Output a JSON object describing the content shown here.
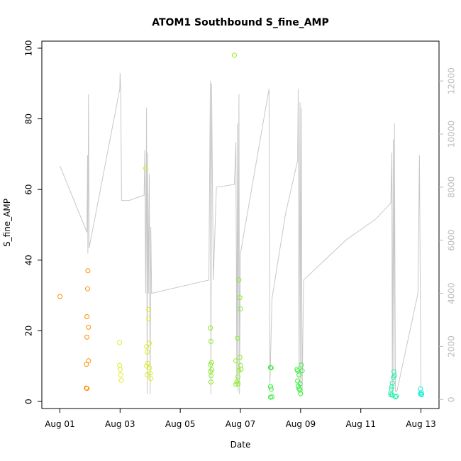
{
  "chart_data": {
    "type": "scatter",
    "title": "ATOM1 Southbound S_fine_AMP",
    "xlabel": "Date",
    "ylabel": "S_fine_AMP",
    "x_unit": "days since Aug 01",
    "xlim": [
      -0.6,
      12.6
    ],
    "ylim": [
      -2,
      102
    ],
    "x_ticks": [
      {
        "value": 0,
        "label": "Aug 01"
      },
      {
        "value": 2,
        "label": "Aug 03"
      },
      {
        "value": 4,
        "label": "Aug 05"
      },
      {
        "value": 6,
        "label": "Aug 07"
      },
      {
        "value": 8,
        "label": "Aug 09"
      },
      {
        "value": 10,
        "label": "Aug 11"
      },
      {
        "value": 12,
        "label": "Aug 13"
      }
    ],
    "y_ticks": [
      0,
      20,
      40,
      60,
      80,
      100
    ],
    "y2_ticks": [
      0,
      2000,
      4000,
      6000,
      8000,
      10000,
      12000
    ],
    "y2lim": [
      -340,
      13500
    ],
    "grid": false,
    "secondary_series": {
      "color": "#c8c8c8",
      "points": [
        [
          0,
          8800
        ],
        [
          0.9,
          6300
        ],
        [
          0.92,
          9200
        ],
        [
          0.93,
          5500
        ],
        [
          0.95,
          11500
        ],
        [
          0.97,
          5700
        ],
        [
          1.99,
          11700
        ],
        [
          2.0,
          12300
        ],
        [
          2.02,
          11700
        ],
        [
          2.05,
          7500
        ],
        [
          2.3,
          7500
        ],
        [
          2.8,
          7700
        ],
        [
          2.82,
          9400
        ],
        [
          2.85,
          4000
        ],
        [
          2.88,
          11000
        ],
        [
          2.9,
          200
        ],
        [
          2.92,
          9300
        ],
        [
          2.94,
          4000
        ],
        [
          2.97,
          8500
        ],
        [
          3.0,
          200
        ],
        [
          3.02,
          6500
        ],
        [
          3.05,
          4000
        ],
        [
          4.95,
          4500
        ],
        [
          5.0,
          12000
        ],
        [
          5.02,
          200
        ],
        [
          5.04,
          11900
        ],
        [
          5.1,
          4500
        ],
        [
          5.2,
          8000
        ],
        [
          5.8,
          8100
        ],
        [
          5.85,
          9700
        ],
        [
          5.88,
          600
        ],
        [
          5.9,
          10400
        ],
        [
          5.92,
          300
        ],
        [
          5.95,
          11500
        ],
        [
          5.97,
          200
        ],
        [
          6.0,
          5500
        ],
        [
          6.95,
          11700
        ],
        [
          6.98,
          600
        ],
        [
          7.05,
          3800
        ],
        [
          7.5,
          7000
        ],
        [
          7.9,
          9000
        ],
        [
          7.92,
          11700
        ],
        [
          7.95,
          400
        ],
        [
          7.98,
          11200
        ],
        [
          8.0,
          600
        ],
        [
          8.02,
          11000
        ],
        [
          8.05,
          300
        ],
        [
          8.1,
          4500
        ],
        [
          9.5,
          6000
        ],
        [
          10.5,
          6800
        ],
        [
          11.0,
          7400
        ],
        [
          11.03,
          9300
        ],
        [
          11.05,
          300
        ],
        [
          11.08,
          9800
        ],
        [
          11.1,
          500
        ],
        [
          11.12,
          10400
        ],
        [
          11.15,
          300
        ],
        [
          11.2,
          300
        ],
        [
          11.9,
          4000
        ],
        [
          11.95,
          9200
        ],
        [
          12.0,
          400
        ]
      ]
    },
    "series": [
      {
        "color": "#FF8C00",
        "points": [
          [
            0,
            29.7
          ],
          [
            0.88,
            10.5
          ],
          [
            0.88,
            3.8
          ],
          [
            0.9,
            18.2
          ],
          [
            0.9,
            24.0
          ],
          [
            0.92,
            31.9
          ],
          [
            0.93,
            37.0
          ],
          [
            0.95,
            21.0
          ],
          [
            0.95,
            11.5
          ],
          [
            0.9,
            3.7
          ]
        ]
      },
      {
        "color": "#DDEE22",
        "points": [
          [
            1.98,
            16.7
          ],
          [
            1.98,
            10.2
          ],
          [
            2.0,
            9.1
          ],
          [
            2.02,
            7.5
          ],
          [
            2.04,
            6.0
          ],
          [
            2.85,
            66.0
          ],
          [
            2.88,
            15.5
          ],
          [
            2.9,
            14.0
          ],
          [
            2.92,
            10.8
          ],
          [
            2.88,
            10.0
          ],
          [
            2.95,
            26.0
          ],
          [
            2.95,
            23.5
          ],
          [
            2.97,
            16.5
          ],
          [
            2.98,
            9.5
          ],
          [
            3.0,
            8.0
          ],
          [
            3.02,
            6.5
          ],
          [
            2.9,
            7.6
          ]
        ]
      },
      {
        "color": "#88EE22",
        "points": [
          [
            5.0,
            10.4
          ],
          [
            5.0,
            20.8
          ],
          [
            5.02,
            17.0
          ],
          [
            5.04,
            11.0
          ],
          [
            5.05,
            9.0
          ],
          [
            5.03,
            7.3
          ],
          [
            5.02,
            5.5
          ],
          [
            5.0,
            8.5
          ],
          [
            5.8,
            98.0
          ],
          [
            5.85,
            11.5
          ],
          [
            5.85,
            4.8
          ],
          [
            5.88,
            5.5
          ],
          [
            5.9,
            17.9
          ],
          [
            5.92,
            5.0
          ],
          [
            5.95,
            34.4
          ],
          [
            5.98,
            29.4
          ],
          [
            6.0,
            26.2
          ],
          [
            5.98,
            12.5
          ],
          [
            6.0,
            10.2
          ],
          [
            6.02,
            9.1
          ],
          [
            5.95,
            8.8
          ],
          [
            5.92,
            7.0
          ]
        ]
      },
      {
        "color": "#33EE33",
        "points": [
          [
            7.0,
            9.6
          ],
          [
            7.02,
            9.5
          ],
          [
            7.0,
            4.2
          ],
          [
            7.02,
            3.5
          ],
          [
            7.05,
            1.3
          ],
          [
            7.0,
            1.2
          ],
          [
            7.88,
            9.1
          ],
          [
            7.9,
            8.7
          ],
          [
            7.9,
            5.8
          ],
          [
            7.92,
            4.3
          ],
          [
            7.95,
            3.6
          ],
          [
            7.98,
            3.2
          ],
          [
            8.0,
            2.2
          ],
          [
            8.02,
            10.3
          ],
          [
            8.05,
            8.7
          ],
          [
            7.95,
            7.5
          ],
          [
            7.98,
            5.0
          ]
        ]
      },
      {
        "color": "#22EEAA",
        "points": [
          [
            11.0,
            2.4
          ],
          [
            11.02,
            3.5
          ],
          [
            11.05,
            5.2
          ],
          [
            11.08,
            6.8
          ],
          [
            11.1,
            8.4
          ],
          [
            11.12,
            7.3
          ],
          [
            11.15,
            1.3
          ],
          [
            11.05,
            1.8
          ],
          [
            11.0,
            1.9
          ],
          [
            11.03,
            4.2
          ],
          [
            11.18,
            1.5
          ]
        ]
      },
      {
        "color": "#22EEDD",
        "points": [
          [
            11.98,
            3.6
          ],
          [
            11.98,
            2.3
          ],
          [
            12.0,
            2.0
          ],
          [
            12.02,
            2.5
          ],
          [
            12.02,
            1.9
          ]
        ]
      }
    ]
  }
}
